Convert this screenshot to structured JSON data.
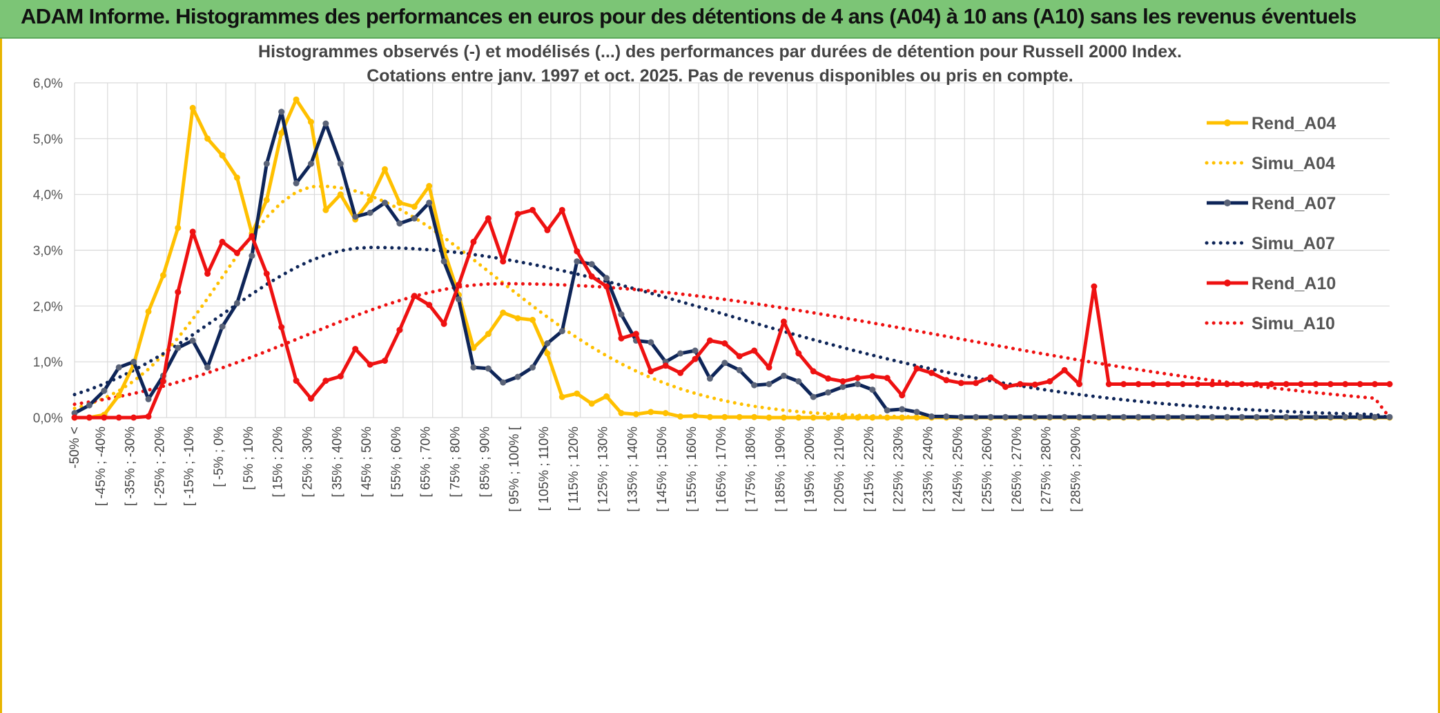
{
  "banner": {
    "title": "ADAM Informe. Histogrammes des performances en euros pour des détentions de 4 ans (A04) à 10 ans (A10) sans les revenus éventuels"
  },
  "colors": {
    "banner_bg": "#7cc576",
    "a04": "#ffc000",
    "a07": "#0e2558",
    "a07_marker": "#5a6378",
    "a10": "#ee1111",
    "grid": "#d9d9d9"
  },
  "chart_data": {
    "type": "line",
    "title_line1": "Histogrammes observés (-) et modélisés (...) des performances par durées de détention pour Russell 2000 Index.",
    "title_line2": "Cotations entre janv. 1997 et oct. 2025. Pas de revenus disponibles ou pris en compte.",
    "ylim": [
      0,
      6
    ],
    "yticks": [
      "0,0%",
      "1,0%",
      "2,0%",
      "3,0%",
      "4,0%",
      "5,0%",
      "6,0%"
    ],
    "xlabel_ticks": [
      "-50% <",
      "[ -45% ; -40%",
      "[ -35% ; -30%",
      "[ -25% ; -20%",
      "[ -15% ; -10%",
      "[ -5% ; 0%",
      "[ 5% ; 10%",
      "[ 15% ; 20%",
      "[ 25% ; 30%",
      "[ 35% ; 40%",
      "[ 45% ; 50%",
      "[ 55% ; 60%",
      "[ 65% ; 70%",
      "[ 75% ; 80%",
      "[ 85% ; 90%",
      "[ 95% ; 100% [",
      "[ 105% ; 110%",
      "[ 115% ; 120%",
      "[ 125% ; 130%",
      "[ 135% ; 140%",
      "[ 145% ; 150%",
      "[ 155% ; 160%",
      "[ 165% ; 170%",
      "[ 175% ; 180%",
      "[ 185% ; 190%",
      "[ 195% ; 200%",
      "[ 205% ; 210%",
      "[ 215% ; 220%",
      "[ 225% ; 230%",
      "[ 235% ; 240%",
      "[ 245% ; 250%",
      "[ 255% ; 260%",
      "[ 265% ; 270%",
      "[ 275% ; 280%",
      "[ 285% ; 290%"
    ],
    "legend": [
      "Rend_A04",
      "Simu_A04",
      "Rend_A07",
      "Simu_A07",
      "Rend_A10",
      "Simu_A10"
    ],
    "series": [
      {
        "name": "Rend_A04",
        "style": "solid",
        "color": "#ffc000",
        "values": [
          0.0,
          0.0,
          0.05,
          0.4,
          0.95,
          1.9,
          2.55,
          3.4,
          5.55,
          5.0,
          4.7,
          4.3,
          3.3,
          3.9,
          5.1,
          5.7,
          5.3,
          3.72,
          4.0,
          3.55,
          3.9,
          4.45,
          3.85,
          3.78,
          4.15,
          3.0,
          2.2,
          1.25,
          1.5,
          1.88,
          1.78,
          1.75,
          1.15,
          0.37,
          0.43,
          0.25,
          0.38,
          0.08,
          0.06,
          0.1,
          0.08,
          0.02,
          0.03,
          0.01,
          0.01,
          0.01,
          0.01,
          0.0,
          0.0,
          0.0,
          0.0,
          0.0,
          0.0,
          0.0,
          0.0,
          0.0,
          0.0,
          0.0,
          0.0,
          0.0,
          0.0,
          0.0,
          0.0,
          0.0,
          0.0,
          0.0,
          0.0,
          0.0,
          0.0,
          0.0,
          0.0,
          0.0,
          0.0,
          0.0,
          0.0,
          0.0,
          0.0,
          0.0,
          0.0,
          0.0,
          0.0,
          0.0,
          0.0,
          0.0,
          0.0,
          0.0,
          0.0,
          0.0,
          0.0,
          0.0
        ]
      },
      {
        "name": "Rend_A07",
        "style": "solid",
        "color": "#0e2558",
        "values": [
          0.08,
          0.22,
          0.48,
          0.9,
          1.0,
          0.33,
          0.75,
          1.25,
          1.38,
          0.9,
          1.63,
          2.05,
          2.9,
          4.55,
          5.48,
          4.2,
          4.55,
          5.27,
          4.55,
          3.6,
          3.67,
          3.85,
          3.48,
          3.57,
          3.85,
          2.8,
          2.12,
          0.9,
          0.88,
          0.63,
          0.73,
          0.9,
          1.33,
          1.55,
          2.8,
          2.75,
          2.5,
          1.85,
          1.38,
          1.35,
          1.0,
          1.15,
          1.2,
          0.7,
          0.98,
          0.85,
          0.58,
          0.6,
          0.75,
          0.65,
          0.37,
          0.45,
          0.55,
          0.6,
          0.5,
          0.13,
          0.15,
          0.1,
          0.02,
          0.02,
          0.01,
          0.01,
          0.01,
          0.01,
          0.01,
          0.01,
          0.01,
          0.01,
          0.01,
          0.01,
          0.01,
          0.01,
          0.01,
          0.01,
          0.01,
          0.01,
          0.01,
          0.01,
          0.01,
          0.01,
          0.01,
          0.01,
          0.01,
          0.01,
          0.01,
          0.01,
          0.01,
          0.01,
          0.01,
          0.01
        ]
      },
      {
        "name": "Rend_A10",
        "style": "solid",
        "color": "#ee1111",
        "values": [
          0.0,
          0.0,
          0.0,
          0.0,
          0.0,
          0.02,
          0.65,
          2.25,
          3.33,
          2.58,
          3.15,
          2.95,
          3.25,
          2.58,
          1.62,
          0.66,
          0.34,
          0.66,
          0.74,
          1.23,
          0.95,
          1.02,
          1.57,
          2.18,
          2.02,
          1.68,
          2.38,
          3.15,
          3.57,
          2.8,
          3.65,
          3.72,
          3.36,
          3.72,
          2.98,
          2.53,
          2.35,
          1.42,
          1.5,
          0.83,
          0.93,
          0.8,
          1.05,
          1.38,
          1.33,
          1.1,
          1.2,
          0.9,
          1.72,
          1.15,
          0.83,
          0.7,
          0.65,
          0.71,
          0.74,
          0.71,
          0.4,
          0.88,
          0.8,
          0.67,
          0.62,
          0.62,
          0.72,
          0.55,
          0.6,
          0.59,
          0.65,
          0.85,
          0.6,
          2.35,
          0.6,
          0.6,
          0.6,
          0.6,
          0.6,
          0.6,
          0.6,
          0.6,
          0.6,
          0.6,
          0.6,
          0.6,
          0.6,
          0.6,
          0.6,
          0.6,
          0.6,
          0.6,
          0.6,
          0.6
        ]
      }
    ],
    "simulated_series": [
      {
        "name": "Simu_A04",
        "style": "dotted",
        "color": "#ffc000",
        "model": "lognormal-like fit",
        "peak_pct": 4.15,
        "peak_at": "[ 25% ; 30%"
      },
      {
        "name": "Simu_A07",
        "style": "dotted",
        "color": "#0e2558",
        "model": "lognormal-like fit",
        "peak_pct": 3.05,
        "peak_at": "[ 45% ; 50%"
      },
      {
        "name": "Simu_A10",
        "style": "dotted",
        "color": "#ee1111",
        "model": "lognormal-like fit",
        "peak_pct": 2.4,
        "peak_at": "[ 85% ; 90%"
      }
    ]
  }
}
